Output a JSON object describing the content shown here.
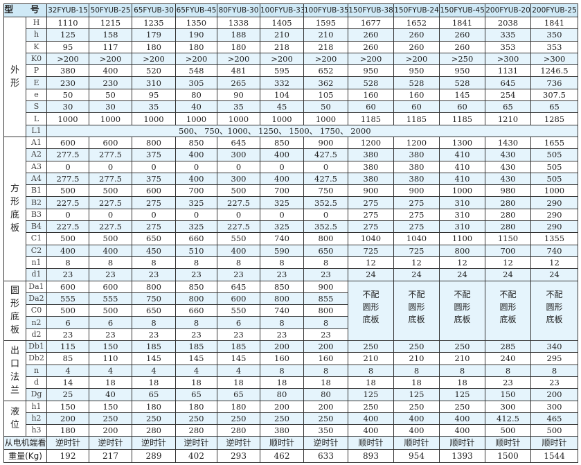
{
  "header": {
    "label": "型 号",
    "models": [
      "32FYUB-15",
      "50FYUB-25",
      "65FYUB-30",
      "65FYUB-45",
      "80FYUB-30",
      "100FYUB-33",
      "100FYUB-35",
      "150FYUB-38",
      "150FYUB-24",
      "150FYUB-45",
      "200FYUB-20",
      "200FYUB-25"
    ]
  },
  "colors": {
    "header_bg": "#cfe9f6",
    "alt_row_bg": "#e5f4fc",
    "border": "#333333"
  },
  "sections": [
    {
      "group": "外\n形",
      "rows": [
        {
          "param": "H",
          "values": [
            "1110",
            "1215",
            "1235",
            "1350",
            "1338",
            "1405",
            "1595",
            "1677",
            "1652",
            "1841",
            "2038",
            "1841"
          ]
        },
        {
          "param": "h",
          "values": [
            "125",
            "158",
            "179",
            "190",
            "188",
            "210",
            "210",
            "260",
            "260",
            "260",
            "335",
            "350"
          ]
        },
        {
          "param": "K",
          "values": [
            "95",
            "117",
            "180",
            "180",
            "180",
            "218",
            "218",
            "260",
            "260",
            "260",
            "353",
            "353"
          ]
        },
        {
          "param": "K0",
          "values": [
            ">200",
            ">200",
            ">200",
            ">200",
            ">200",
            ">200",
            ">200",
            ">200",
            ">200",
            ">250",
            ">300",
            ">300"
          ]
        },
        {
          "param": "P",
          "values": [
            "380",
            "400",
            "520",
            "548",
            "481",
            "595",
            "652",
            "950",
            "950",
            "950",
            "1131",
            "1246.5"
          ]
        },
        {
          "param": "E",
          "values": [
            "230",
            "230",
            "310",
            "305",
            "265",
            "332",
            "362",
            "528",
            "528",
            "528",
            "645",
            "736"
          ]
        },
        {
          "param": "e",
          "values": [
            "50",
            "50",
            "95",
            "80",
            "90",
            "104",
            "105",
            "160",
            "160",
            "145",
            "254",
            "307.5"
          ]
        },
        {
          "param": "S",
          "values": [
            "30",
            "30",
            "35",
            "40",
            "35",
            "45",
            "50",
            "60",
            "60",
            "60",
            "65",
            "65"
          ]
        },
        {
          "param": "L",
          "values": [
            "1000",
            "1000",
            "1000",
            "1000",
            "1000",
            "1000",
            "1000",
            "1185",
            "1185",
            "1185",
            "1210",
            "1285"
          ]
        },
        {
          "param": "L1",
          "span_text": "500、 750、1000、 1250、 1500、 1750、 2000"
        }
      ]
    },
    {
      "group": "方\n形\n底\n板",
      "rows": [
        {
          "param": "A1",
          "values": [
            "600",
            "600",
            "800",
            "850",
            "645",
            "850",
            "900",
            "1200",
            "1200",
            "1300",
            "1430",
            "1655"
          ]
        },
        {
          "param": "A2",
          "values": [
            "277.5",
            "277.5",
            "375",
            "400",
            "300",
            "400",
            "427.5",
            "380",
            "380",
            "410",
            "430",
            "505"
          ]
        },
        {
          "param": "A3",
          "values": [
            "0",
            "0",
            "0",
            "0",
            "0",
            "0",
            "0",
            "380",
            "380",
            "410",
            "430",
            "505"
          ]
        },
        {
          "param": "A4",
          "values": [
            "277.5",
            "277.5",
            "375",
            "400",
            "300",
            "400",
            "427.5",
            "380",
            "380",
            "410",
            "430",
            "505"
          ]
        },
        {
          "param": "B1",
          "values": [
            "500",
            "500",
            "600",
            "700",
            "500",
            "700",
            "750",
            "900",
            "900",
            "1000",
            "980",
            "1000"
          ]
        },
        {
          "param": "B2",
          "values": [
            "227.5",
            "227.5",
            "275",
            "325",
            "227.5",
            "325",
            "352.5",
            "275",
            "275",
            "310",
            "280",
            "290"
          ]
        },
        {
          "param": "B3",
          "values": [
            "0",
            "0",
            "0",
            "0",
            "0",
            "0",
            "0",
            "275",
            "275",
            "310",
            "280",
            "290"
          ]
        },
        {
          "param": "B4",
          "values": [
            "227.5",
            "227.5",
            "275",
            "325",
            "227.5",
            "325",
            "352.5",
            "275",
            "275",
            "310",
            "280",
            "290"
          ]
        },
        {
          "param": "C1",
          "values": [
            "500",
            "500",
            "650",
            "660",
            "550",
            "740",
            "800",
            "1040",
            "1040",
            "1100",
            "1150",
            "1355"
          ]
        },
        {
          "param": "C2",
          "values": [
            "400",
            "400",
            "450",
            "510",
            "400",
            "590",
            "650",
            "725",
            "725",
            "800",
            "700",
            "740"
          ]
        },
        {
          "param": "n1",
          "values": [
            "8",
            "8",
            "8",
            "8",
            "8",
            "8",
            "8",
            "12",
            "12",
            "12",
            "12",
            "12"
          ]
        },
        {
          "param": "d1",
          "values": [
            "23",
            "23",
            "23",
            "23",
            "23",
            "23",
            "23",
            "24",
            "24",
            "24",
            "24",
            "24"
          ]
        }
      ]
    },
    {
      "group": "圆\n形\n底\n板",
      "note": "不配\n圆形\n底板",
      "rows": [
        {
          "param": "Da1",
          "values": [
            "600",
            "600",
            "800",
            "850",
            "645",
            "850",
            "900"
          ]
        },
        {
          "param": "Da2",
          "values": [
            "555",
            "555",
            "750",
            "800",
            "600",
            "800",
            "855"
          ]
        },
        {
          "param": "C0",
          "values": [
            "500",
            "500",
            "650",
            "660",
            "550",
            "740",
            "800"
          ]
        },
        {
          "param": "n2",
          "values": [
            "6",
            "6",
            "8",
            "8",
            "6",
            "8",
            "8"
          ]
        },
        {
          "param": "d2",
          "values": [
            "23",
            "23",
            "23",
            "23",
            "23",
            "23",
            "23"
          ]
        }
      ]
    },
    {
      "group": "出\n口\n法\n兰",
      "rows": [
        {
          "param": "Db1",
          "values": [
            "115",
            "150",
            "185",
            "185",
            "185",
            "200",
            "200",
            "250",
            "250",
            "250",
            "285",
            "340"
          ]
        },
        {
          "param": "Db2",
          "values": [
            "85",
            "110",
            "145",
            "145",
            "145",
            "160",
            "160",
            "210",
            "210",
            "210",
            "240",
            "295"
          ]
        },
        {
          "param": "n",
          "values": [
            "4",
            "4",
            "4",
            "4",
            "4",
            "8",
            "8",
            "8",
            "8",
            "8",
            "8",
            "8"
          ]
        },
        {
          "param": "d",
          "values": [
            "14",
            "18",
            "18",
            "18",
            "18",
            "18",
            "18",
            "18",
            "18",
            "18",
            "23",
            "23"
          ]
        },
        {
          "param": "Dg",
          "values": [
            "25",
            "40",
            "65",
            "65",
            "65",
            "80",
            "80",
            "125",
            "125",
            "125",
            "150",
            "200"
          ]
        }
      ]
    },
    {
      "group": "液\n位",
      "rows": [
        {
          "param": "h1",
          "values": [
            "150",
            "150",
            "180",
            "180",
            "180",
            "200",
            "200",
            "250",
            "250",
            "250",
            "300",
            "300"
          ]
        },
        {
          "param": "h2",
          "values": [
            "200",
            "250",
            "250",
            "250",
            "250",
            "250",
            "250",
            "400",
            "400",
            "400",
            "412.5",
            "465"
          ]
        },
        {
          "param": "h3",
          "values": [
            "180",
            "200",
            "280",
            "280",
            "280",
            "380",
            "350",
            "400",
            "400",
            "400",
            "500",
            "500"
          ]
        }
      ]
    }
  ],
  "rotation": {
    "label": "从电机端看",
    "values": [
      "逆时针",
      "逆时针",
      "逆时针",
      "逆时针",
      "逆时针",
      "顺时针",
      "逆时针",
      "顺时针",
      "顺时针",
      "顺时针",
      "顺时针",
      "顺时针"
    ]
  },
  "weight": {
    "label": "重量(Kg)",
    "values": [
      "192",
      "217",
      "289",
      "402",
      "293",
      "462",
      "633",
      "893",
      "954",
      "1393",
      "1500",
      "1544"
    ]
  }
}
